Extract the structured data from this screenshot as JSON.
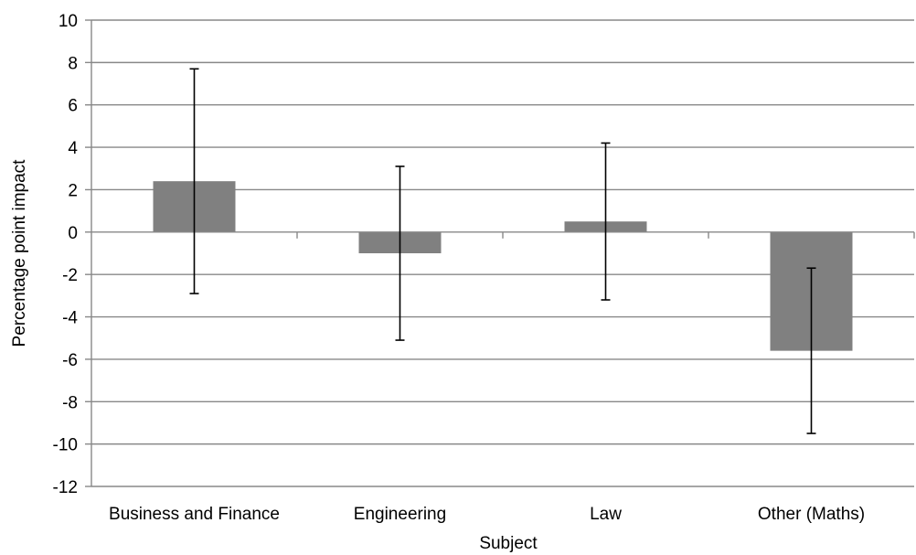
{
  "chart_data": {
    "type": "bar",
    "title": "",
    "xlabel": "Subject",
    "ylabel": "Percentage point impact",
    "categories": [
      "Business and Finance",
      "Engineering",
      "Law",
      "Other (Maths)"
    ],
    "values": [
      2.4,
      -1.0,
      0.5,
      -5.6
    ],
    "error_bars": [
      {
        "low": -2.9,
        "high": 7.7
      },
      {
        "low": -5.1,
        "high": 3.1
      },
      {
        "low": -3.2,
        "high": 4.2
      },
      {
        "low": -9.5,
        "high": -1.7
      }
    ],
    "ylim": [
      -12,
      10
    ],
    "yticks": [
      10,
      8,
      6,
      4,
      2,
      0,
      -2,
      -4,
      -6,
      -8,
      -10,
      -12
    ],
    "ytick_labels": [
      "10",
      "8",
      "6",
      "4",
      "2",
      "0",
      "-2",
      "-4",
      "-6",
      "-8",
      "-10",
      "-12"
    ],
    "grid": true,
    "legend": "none",
    "colors": {
      "bar": "#808080",
      "gridline": "#888888",
      "axis": "#888888",
      "error_bar": "#000000"
    }
  }
}
